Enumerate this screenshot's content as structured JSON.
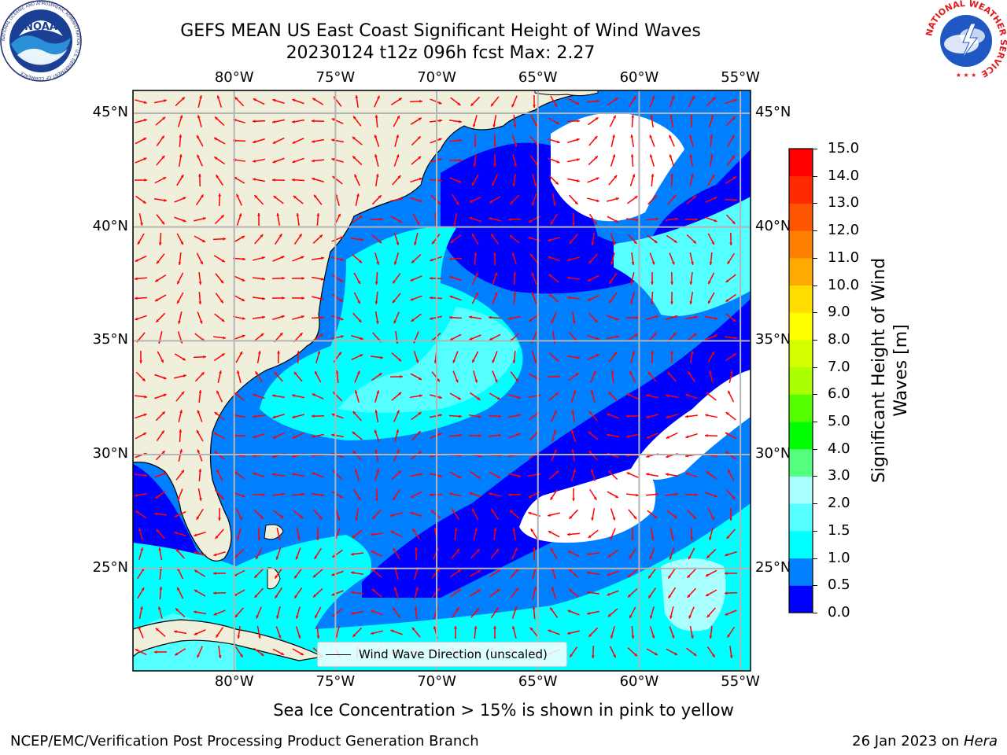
{
  "title": {
    "line1": "GEFS MEAN US East Coast Significant Height of Wind Waves",
    "line2": "20230124 t12z 096h fcst   Max: 2.27"
  },
  "map": {
    "lon_labels": [
      "80°W",
      "75°W",
      "70°W",
      "65°W",
      "60°W",
      "55°W"
    ],
    "lat_labels": [
      "45°N",
      "40°N",
      "35°N",
      "30°N",
      "25°N"
    ],
    "extent": {
      "lon": [
        -85,
        -54.5
      ],
      "lat": [
        20.5,
        46
      ]
    },
    "colors": {
      "land": "#efefdc",
      "coast": "#000000",
      "grid": "#b4b4b4",
      "arrow": "#ff0000",
      "no_wave": "#ffffff"
    },
    "legend": {
      "label": "Wind Wave Direction (unscaled)"
    }
  },
  "colorbar": {
    "title": "Significant Height of Wind Waves [m]",
    "tick_labels": [
      "0.0",
      "0.5",
      "1.0",
      "1.5",
      "2.0",
      "3.0",
      "4.0",
      "5.0",
      "6.0",
      "7.0",
      "8.0",
      "9.0",
      "10.0",
      "11.0",
      "12.0",
      "13.0",
      "14.0",
      "15.0"
    ],
    "colors": [
      "#0000ff",
      "#0080ff",
      "#00ffff",
      "#55ffff",
      "#aaffff",
      "#55ff80",
      "#00ff00",
      "#55ff00",
      "#aaff00",
      "#d4ff00",
      "#ffff00",
      "#ffdd00",
      "#ffaa00",
      "#ff8000",
      "#ff5500",
      "#ff2a00",
      "#ff0000"
    ]
  },
  "footer": {
    "ice_note": "Sea Ice Concentration > 15% is shown in pink to yellow",
    "credit": "NCEP/EMC/Verification Post Processing Product Generation Branch",
    "date": "26 Jan 2023 on",
    "machine": "Hera"
  },
  "logos": {
    "noaa": {
      "text": "NOAA",
      "ring": "NATIONAL OCEANIC AND ATMOSPHERIC ADMINISTRATION · U.S. DEPARTMENT OF COMMERCE"
    },
    "nws": {
      "ring": "NATIONAL WEATHER SERVICE"
    }
  }
}
